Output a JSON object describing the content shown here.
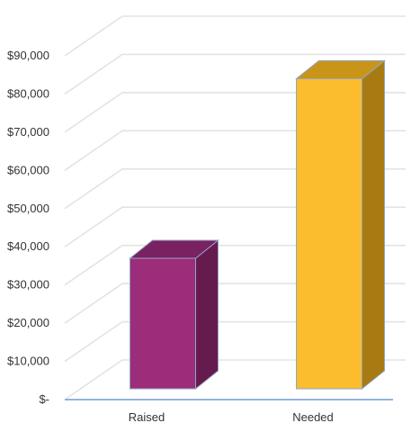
{
  "chart_data": {
    "type": "bar",
    "categories": [
      "Raised",
      "Needed"
    ],
    "values": [
      37000,
      84000
    ],
    "ylim": [
      0,
      90000
    ],
    "ytick_values": [
      0,
      10000,
      20000,
      30000,
      40000,
      50000,
      60000,
      70000,
      80000,
      90000
    ],
    "ytick_labels": [
      "$-",
      "$10,000",
      "$20,000",
      "$30,000",
      "$40,000",
      "$50,000",
      "$60,000",
      "$70,000",
      "$80,000",
      "$90,000"
    ],
    "grid": true,
    "three_d": true,
    "legend": "none",
    "colors": {
      "bars": [
        "#9c2d7a",
        "#fbbd2e"
      ],
      "bar_sides": [
        "#661b4e",
        "#a87b12"
      ],
      "bar_tops": [
        "#7a2161",
        "#c99518"
      ],
      "bar_edge": "#8fa6c4",
      "gridline": "#e3e3e3",
      "axis": "#6f9bd1"
    }
  }
}
